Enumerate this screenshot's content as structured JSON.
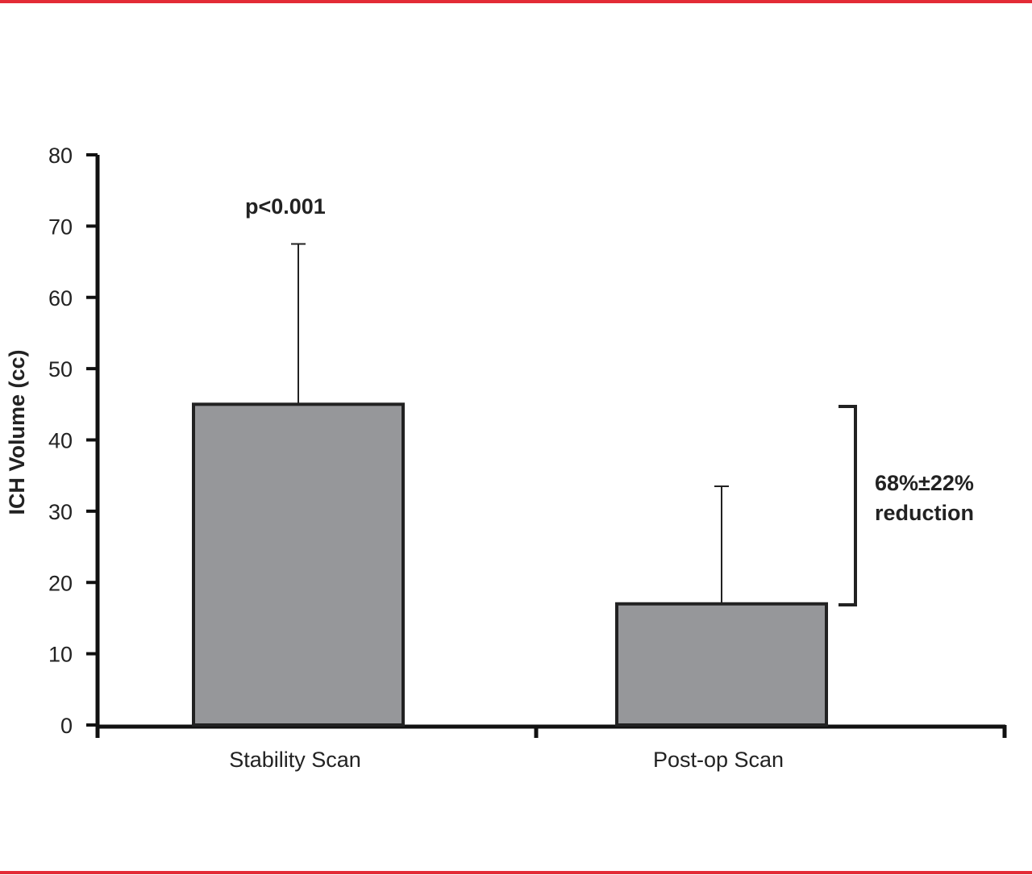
{
  "chart_data": {
    "type": "bar",
    "categories": [
      "Stability Scan",
      "Post-op Scan"
    ],
    "values": [
      45,
      17
    ],
    "error_upper": [
      67.5,
      33.5
    ],
    "ylabel": "ICH Volume (cc)",
    "xlabel": "",
    "ylim": [
      0,
      80
    ],
    "yticks": [
      "0",
      "10",
      "20",
      "30",
      "40",
      "50",
      "60",
      "70",
      "80"
    ],
    "grid": false,
    "legend": "none",
    "bar_color": "#96979a",
    "frame_color": "#e32b36",
    "annotations": {
      "pvalue": "p<0.001",
      "reduction_line1": "68%±22%",
      "reduction_line2": "reduction"
    }
  }
}
